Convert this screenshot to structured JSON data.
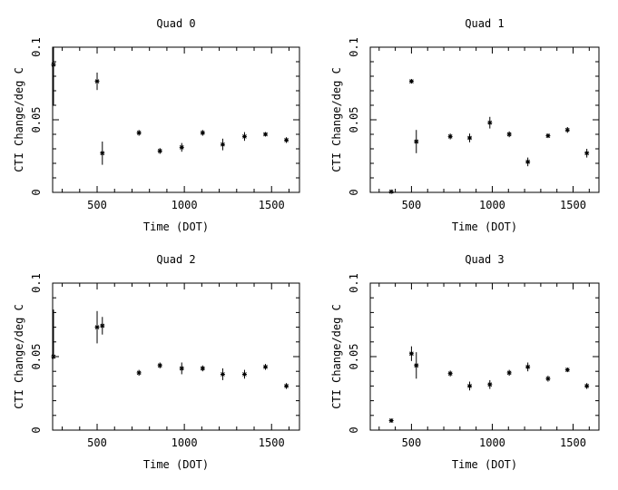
{
  "chart_data": [
    {
      "type": "scatter",
      "title": "Quad 0",
      "xlabel": "Time (DOT)",
      "ylabel": "CTI Change/deg C",
      "xlim": [
        245,
        1660
      ],
      "ylim": [
        0,
        0.1
      ],
      "xticks": [
        500,
        1000,
        1500
      ],
      "yticks": [
        0,
        0.05,
        0.1
      ],
      "points": [
        {
          "x": 250,
          "y": 0.088,
          "yerr_low": 0.028,
          "yerr_high": 0.012
        },
        {
          "x": 500,
          "y": 0.0765,
          "yerr_low": 0.006,
          "yerr_high": 0.006
        },
        {
          "x": 530,
          "y": 0.027,
          "yerr_low": 0.008,
          "yerr_high": 0.008
        },
        {
          "x": 740,
          "y": 0.041,
          "yerr_low": 0.002,
          "yerr_high": 0.002
        },
        {
          "x": 860,
          "y": 0.0285,
          "yerr_low": 0.002,
          "yerr_high": 0.002
        },
        {
          "x": 985,
          "y": 0.031,
          "yerr_low": 0.003,
          "yerr_high": 0.003
        },
        {
          "x": 1105,
          "y": 0.041,
          "yerr_low": 0.002,
          "yerr_high": 0.002
        },
        {
          "x": 1220,
          "y": 0.033,
          "yerr_low": 0.004,
          "yerr_high": 0.004
        },
        {
          "x": 1345,
          "y": 0.0385,
          "yerr_low": 0.003,
          "yerr_high": 0.003
        },
        {
          "x": 1465,
          "y": 0.04,
          "yerr_low": 0.0015,
          "yerr_high": 0.0015
        },
        {
          "x": 1585,
          "y": 0.036,
          "yerr_low": 0.002,
          "yerr_high": 0.002
        }
      ]
    },
    {
      "type": "scatter",
      "title": "Quad 1",
      "xlabel": "Time (DOT)",
      "ylabel": "CTI Change/deg C",
      "xlim": [
        245,
        1660
      ],
      "ylim": [
        0,
        0.1
      ],
      "xticks": [
        500,
        1000,
        1500
      ],
      "yticks": [
        0,
        0.05,
        0.1
      ],
      "points": [
        {
          "x": 375,
          "y": 0.0005,
          "yerr_low": 0.0005,
          "yerr_high": 0.0005
        },
        {
          "x": 500,
          "y": 0.0765,
          "yerr_low": 0.0015,
          "yerr_high": 0.0015
        },
        {
          "x": 530,
          "y": 0.035,
          "yerr_low": 0.008,
          "yerr_high": 0.008
        },
        {
          "x": 740,
          "y": 0.0385,
          "yerr_low": 0.002,
          "yerr_high": 0.002
        },
        {
          "x": 860,
          "y": 0.0375,
          "yerr_low": 0.003,
          "yerr_high": 0.003
        },
        {
          "x": 985,
          "y": 0.048,
          "yerr_low": 0.004,
          "yerr_high": 0.004
        },
        {
          "x": 1105,
          "y": 0.04,
          "yerr_low": 0.002,
          "yerr_high": 0.002
        },
        {
          "x": 1220,
          "y": 0.021,
          "yerr_low": 0.003,
          "yerr_high": 0.003
        },
        {
          "x": 1345,
          "y": 0.039,
          "yerr_low": 0.0015,
          "yerr_high": 0.0015
        },
        {
          "x": 1465,
          "y": 0.043,
          "yerr_low": 0.002,
          "yerr_high": 0.002
        },
        {
          "x": 1585,
          "y": 0.027,
          "yerr_low": 0.003,
          "yerr_high": 0.003
        }
      ]
    },
    {
      "type": "scatter",
      "title": "Quad 2",
      "xlabel": "Time (DOT)",
      "ylabel": "CTI Change/deg C",
      "xlim": [
        245,
        1660
      ],
      "ylim": [
        0,
        0.1
      ],
      "xticks": [
        500,
        1000,
        1500
      ],
      "yticks": [
        0,
        0.05,
        0.1
      ],
      "points": [
        {
          "x": 250,
          "y": 0.05,
          "yerr_low": 0.0,
          "yerr_high": 0.032
        },
        {
          "x": 500,
          "y": 0.07,
          "yerr_low": 0.011,
          "yerr_high": 0.011
        },
        {
          "x": 530,
          "y": 0.071,
          "yerr_low": 0.006,
          "yerr_high": 0.006
        },
        {
          "x": 740,
          "y": 0.039,
          "yerr_low": 0.002,
          "yerr_high": 0.002
        },
        {
          "x": 860,
          "y": 0.044,
          "yerr_low": 0.002,
          "yerr_high": 0.002
        },
        {
          "x": 985,
          "y": 0.042,
          "yerr_low": 0.004,
          "yerr_high": 0.004
        },
        {
          "x": 1105,
          "y": 0.042,
          "yerr_low": 0.002,
          "yerr_high": 0.002
        },
        {
          "x": 1220,
          "y": 0.038,
          "yerr_low": 0.004,
          "yerr_high": 0.004
        },
        {
          "x": 1345,
          "y": 0.038,
          "yerr_low": 0.003,
          "yerr_high": 0.003
        },
        {
          "x": 1465,
          "y": 0.043,
          "yerr_low": 0.002,
          "yerr_high": 0.002
        },
        {
          "x": 1585,
          "y": 0.03,
          "yerr_low": 0.002,
          "yerr_high": 0.002
        }
      ]
    },
    {
      "type": "scatter",
      "title": "Quad 3",
      "xlabel": "Time (DOT)",
      "ylabel": "CTI Change/deg C",
      "xlim": [
        245,
        1660
      ],
      "ylim": [
        0,
        0.1
      ],
      "xticks": [
        500,
        1000,
        1500
      ],
      "yticks": [
        0,
        0.05,
        0.1
      ],
      "points": [
        {
          "x": 375,
          "y": 0.0065,
          "yerr_low": 0.0005,
          "yerr_high": 0.0005
        },
        {
          "x": 500,
          "y": 0.052,
          "yerr_low": 0.005,
          "yerr_high": 0.005
        },
        {
          "x": 530,
          "y": 0.044,
          "yerr_low": 0.009,
          "yerr_high": 0.009
        },
        {
          "x": 740,
          "y": 0.0385,
          "yerr_low": 0.002,
          "yerr_high": 0.002
        },
        {
          "x": 860,
          "y": 0.03,
          "yerr_low": 0.003,
          "yerr_high": 0.003
        },
        {
          "x": 985,
          "y": 0.031,
          "yerr_low": 0.003,
          "yerr_high": 0.003
        },
        {
          "x": 1105,
          "y": 0.039,
          "yerr_low": 0.002,
          "yerr_high": 0.002
        },
        {
          "x": 1220,
          "y": 0.043,
          "yerr_low": 0.003,
          "yerr_high": 0.003
        },
        {
          "x": 1345,
          "y": 0.035,
          "yerr_low": 0.002,
          "yerr_high": 0.002
        },
        {
          "x": 1465,
          "y": 0.041,
          "yerr_low": 0.0015,
          "yerr_high": 0.0015
        },
        {
          "x": 1585,
          "y": 0.03,
          "yerr_low": 0.002,
          "yerr_high": 0.002
        }
      ]
    }
  ]
}
